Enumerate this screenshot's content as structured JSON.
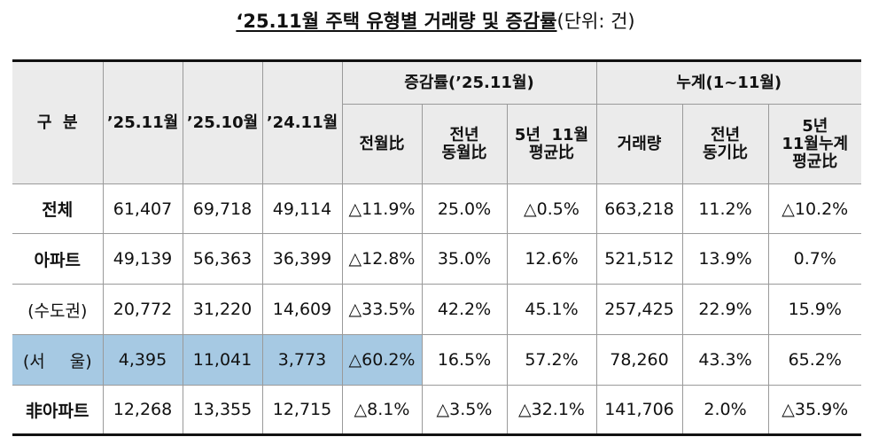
{
  "title": {
    "main": "‘25.11월 주택 유형별 거래량 및 증감률",
    "unit": "(단위: 건)"
  },
  "header": {
    "category": "구  분",
    "col_2511": "’25.11월",
    "col_2510": "’25.10월",
    "col_2411": "’24.11월",
    "group_change": "증감률(’25.11월)",
    "group_cumulative": "누계(1~11월)",
    "sub_mom": "전월比",
    "sub_yoy_l1": "전년",
    "sub_yoy_l2": "동월比",
    "sub_5y_l1": "5년  11월",
    "sub_5y_l2": "평균比",
    "sub_volume": "거래량",
    "sub_cum_yoy_l1": "전년",
    "sub_cum_yoy_l2": "동기比",
    "sub_cum_5y_l1": "5년",
    "sub_cum_5y_l2": "11월누계",
    "sub_cum_5y_l3": "평균比"
  },
  "rows": [
    {
      "label": "전체",
      "v2511": "61,407",
      "v2510": "69,718",
      "v2411": "49,114",
      "mom": "△11.9%",
      "yoy": "25.0%",
      "avg5": "△0.5%",
      "cum": "663,218",
      "cum_yoy": "11.2%",
      "cum_avg5": "△10.2%"
    },
    {
      "label": "아파트",
      "v2511": "49,139",
      "v2510": "56,363",
      "v2411": "36,399",
      "mom": "△12.8%",
      "yoy": "35.0%",
      "avg5": "12.6%",
      "cum": "521,512",
      "cum_yoy": "13.9%",
      "cum_avg5": "0.7%"
    },
    {
      "label": "(수도권)",
      "v2511": "20,772",
      "v2510": "31,220",
      "v2411": "14,609",
      "mom": "△33.5%",
      "yoy": "42.2%",
      "avg5": "45.1%",
      "cum": "257,425",
      "cum_yoy": "22.9%",
      "cum_avg5": "15.9%"
    },
    {
      "label_open": "(서",
      "label_mid": "울)",
      "v2511": "4,395",
      "v2510": "11,041",
      "v2411": "3,773",
      "mom": "△60.2%",
      "yoy": "16.5%",
      "avg5": "57.2%",
      "cum": "78,260",
      "cum_yoy": "43.3%",
      "cum_avg5": "65.2%"
    },
    {
      "label": "非아파트",
      "v2511": "12,268",
      "v2510": "13,355",
      "v2411": "12,715",
      "mom": "△8.1%",
      "yoy": "△3.5%",
      "avg5": "△32.1%",
      "cum": "141,706",
      "cum_yoy": "2.0%",
      "cum_avg5": "△35.9%"
    }
  ],
  "highlight_color": "#a6c9e3"
}
